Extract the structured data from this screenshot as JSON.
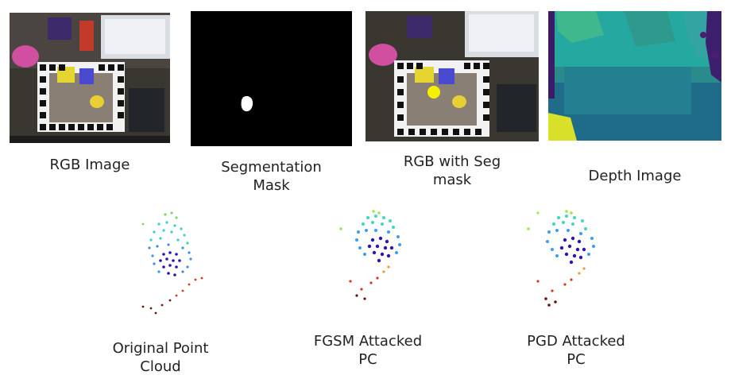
{
  "figure": {
    "panels": [
      {
        "id": "rgb",
        "label": "RGB Image"
      },
      {
        "id": "seg",
        "label": "Segmentation Mask"
      },
      {
        "id": "rgbseg",
        "label": "RGB with Seg mask"
      },
      {
        "id": "depth",
        "label": "Depth Image"
      }
    ],
    "point_clouds": [
      {
        "id": "orig",
        "label": "Original Point Cloud"
      },
      {
        "id": "fgsm",
        "label": "FGSM Attacked PC"
      },
      {
        "id": "pgd",
        "label": "PGD Attacked PC"
      }
    ]
  }
}
